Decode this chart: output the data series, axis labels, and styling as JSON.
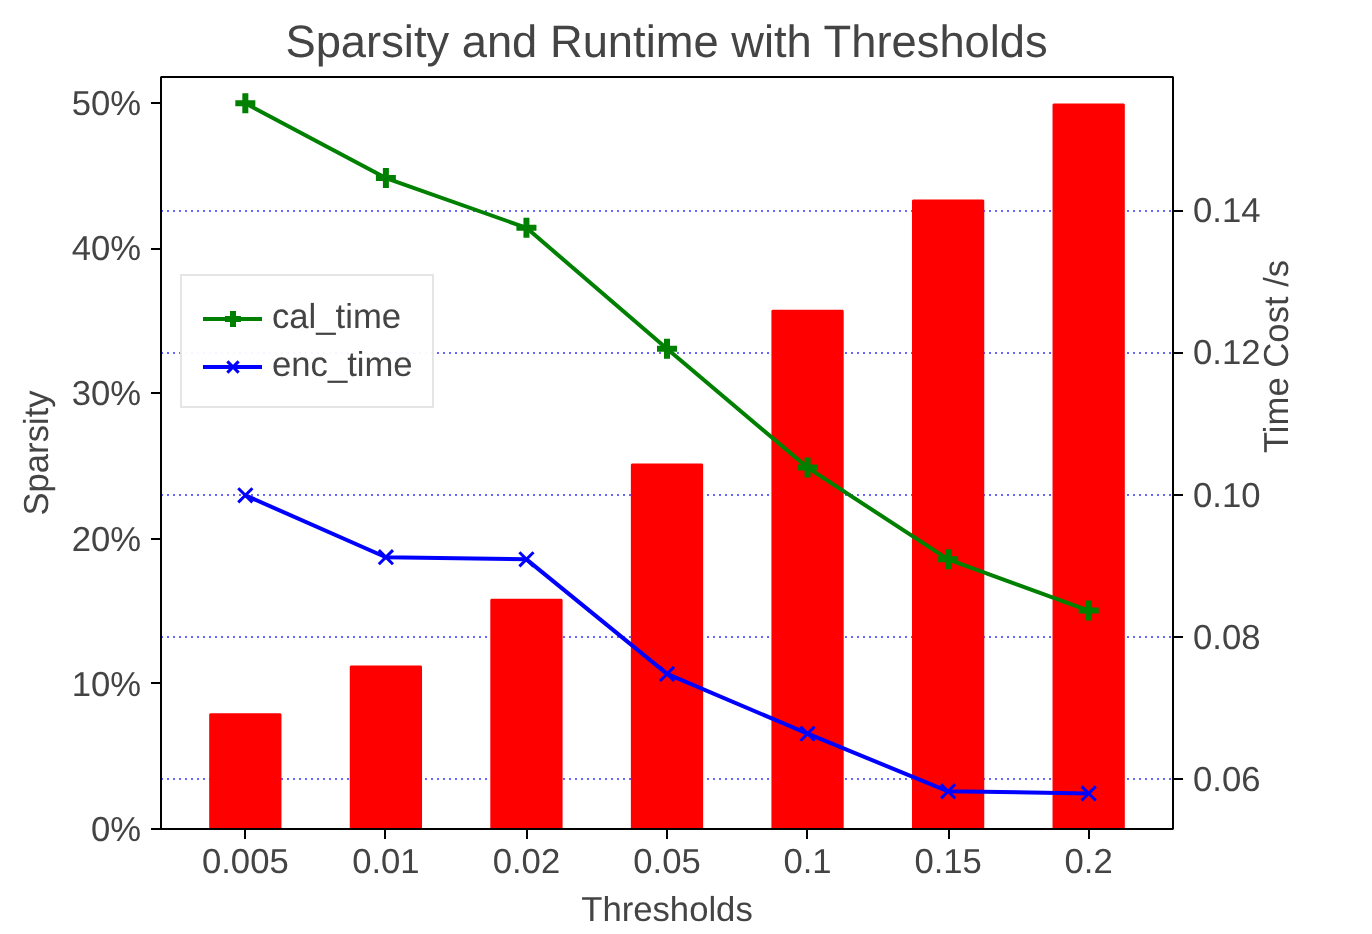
{
  "chart_data": {
    "type": "bar",
    "title": "Sparsity and Runtime with Thresholds",
    "xlabel": "Thresholds",
    "ylabel": "Sparsity",
    "y2label": "Time Cost /s",
    "categories": [
      "0.005",
      "0.01",
      "0.02",
      "0.05",
      "0.1",
      "0.15",
      "0.2"
    ],
    "series": [
      {
        "color": "#ff0000",
        "values": [
          7.9,
          11.2,
          15.8,
          25.1,
          35.7,
          43.3,
          49.9
        ]
      },
      {
        "type": "line",
        "name": "cal_time",
        "color": "#008000",
        "marker": "cross",
        "axis": "y2",
        "values": [
          0.155,
          0.1445,
          0.1375,
          0.1205,
          0.1038,
          0.0909,
          0.0837
        ]
      },
      {
        "type": "line",
        "name": "enc_time",
        "color": "#0000ff",
        "marker": "x",
        "axis": "y2",
        "values": [
          0.0999,
          0.0912,
          0.0909,
          0.0748,
          0.0664,
          0.0583,
          0.058
        ]
      }
    ],
    "ylim": [
      0,
      51.8
    ],
    "yticks": [
      {
        "value": 0,
        "label": "0%"
      },
      {
        "value": 10,
        "label": "10%"
      },
      {
        "value": 20,
        "label": "20%"
      },
      {
        "value": 30,
        "label": "30%"
      },
      {
        "value": 40,
        "label": "40%"
      },
      {
        "value": 50,
        "label": "50%"
      }
    ],
    "y2lim": [
      0.053,
      0.1587
    ],
    "y2ticks": [
      0.06,
      0.08,
      {
        "value": 0.1,
        "label": "0.10"
      },
      0.12,
      0.14
    ],
    "grid": "y2",
    "legend": "top left"
  }
}
